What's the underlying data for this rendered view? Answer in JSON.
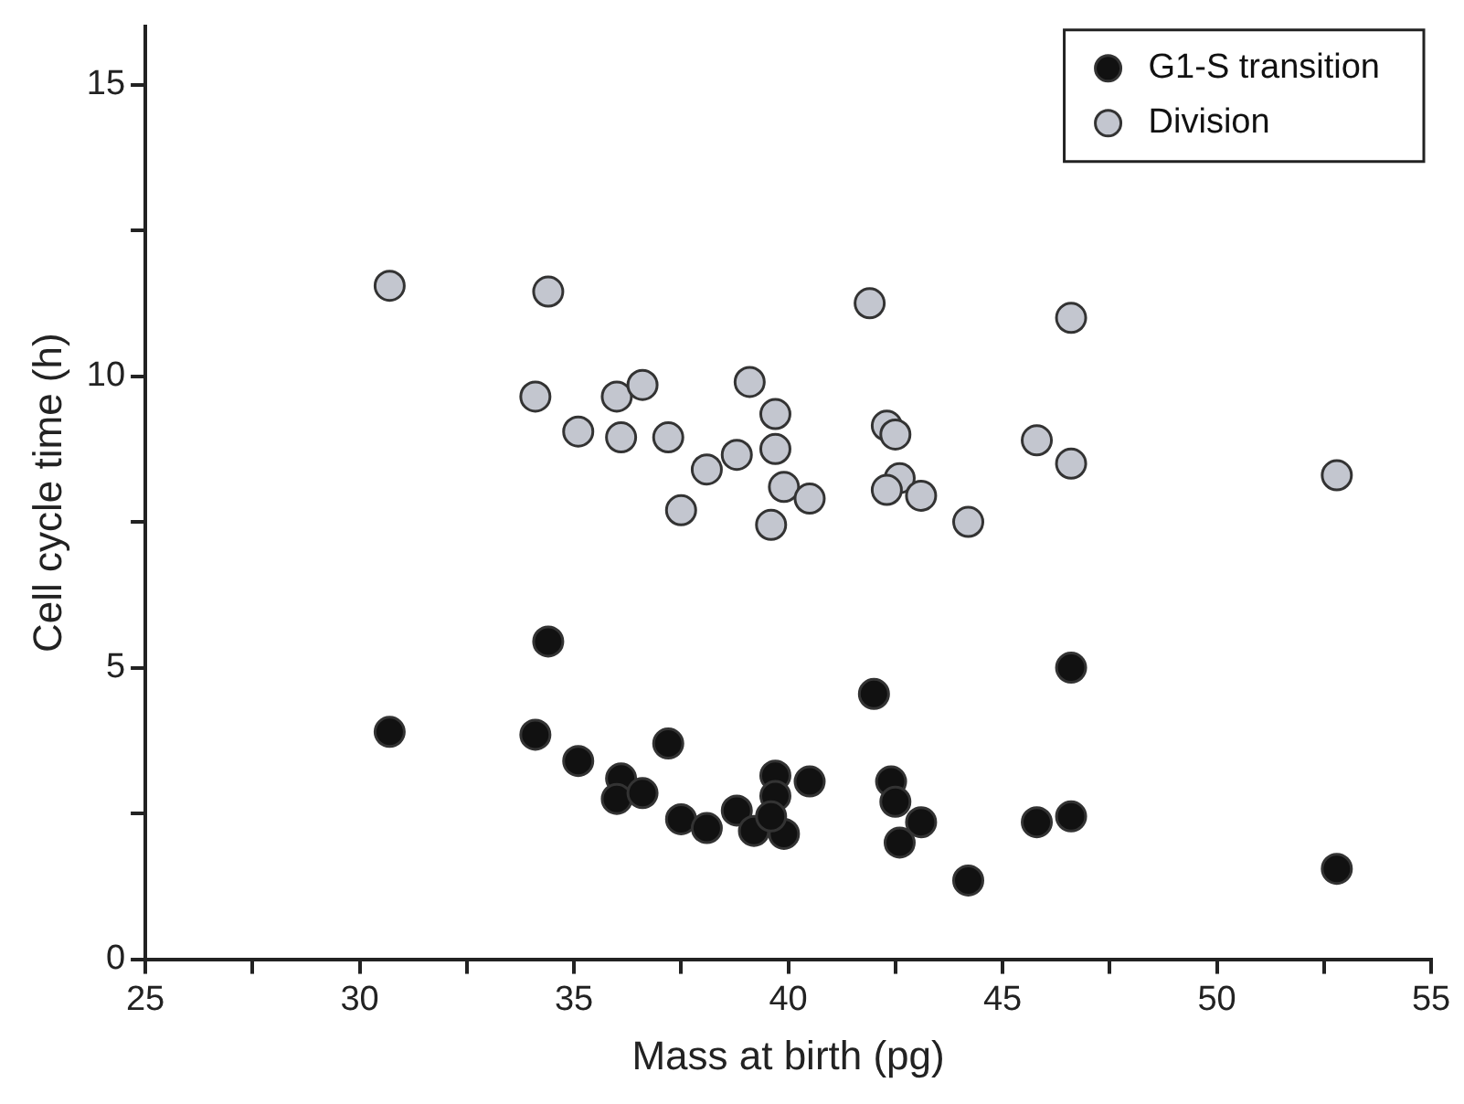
{
  "chart_data": {
    "type": "scatter",
    "xlabel": "Mass at birth (pg)",
    "ylabel": "Cell cycle time (h)",
    "xlim": [
      25,
      55
    ],
    "ylim": [
      0,
      16
    ],
    "xticks": [
      25,
      {
        "value": 27.5,
        "label": null
      },
      30,
      {
        "value": 32.5,
        "label": null
      },
      35,
      {
        "value": 37.5,
        "label": null
      },
      40,
      {
        "value": 42.5,
        "label": null
      },
      45,
      {
        "value": 47.5,
        "label": null
      },
      50,
      {
        "value": 52.5,
        "label": null
      },
      55
    ],
    "yticks": [
      0,
      {
        "value": 2.5,
        "label": null
      },
      5,
      {
        "value": 7.5,
        "label": null
      },
      10,
      {
        "value": 12.5,
        "label": null
      },
      15
    ],
    "grid": false,
    "legend": "top right",
    "marker": "circle",
    "series": [
      {
        "name": "G1-S transition",
        "color": "#111111",
        "x": [
          30.7,
          34.4,
          34.1,
          35.1,
          36.1,
          36.0,
          36.6,
          37.2,
          37.5,
          38.1,
          38.8,
          39.2,
          39.7,
          39.7,
          39.9,
          39.6,
          40.5,
          42.0,
          46.6,
          42.4,
          42.5,
          43.1,
          42.6,
          44.2,
          45.8,
          46.6,
          52.8
        ],
        "values": [
          3.9,
          5.45,
          3.85,
          3.4,
          3.1,
          2.75,
          2.85,
          3.7,
          2.4,
          2.25,
          2.55,
          2.2,
          3.15,
          2.8,
          2.15,
          2.45,
          3.05,
          4.55,
          5.0,
          3.05,
          2.7,
          2.35,
          2.0,
          1.35,
          2.35,
          2.45,
          1.55
        ]
      },
      {
        "name": "Division",
        "color": "#c3c6cf",
        "x": [
          30.7,
          34.4,
          34.1,
          35.1,
          36.0,
          36.1,
          36.6,
          37.2,
          37.5,
          38.1,
          38.8,
          39.1,
          39.7,
          39.7,
          39.9,
          40.5,
          39.6,
          41.9,
          46.6,
          42.3,
          42.5,
          42.6,
          42.3,
          43.1,
          44.2,
          45.8,
          46.6,
          52.8
        ],
        "values": [
          11.55,
          11.45,
          9.65,
          9.05,
          9.65,
          8.95,
          9.85,
          8.95,
          7.7,
          8.4,
          8.65,
          9.9,
          9.35,
          8.75,
          8.1,
          7.9,
          7.45,
          11.25,
          11.0,
          9.15,
          9.0,
          8.25,
          8.05,
          7.95,
          7.5,
          8.9,
          8.5,
          8.3
        ]
      }
    ]
  }
}
